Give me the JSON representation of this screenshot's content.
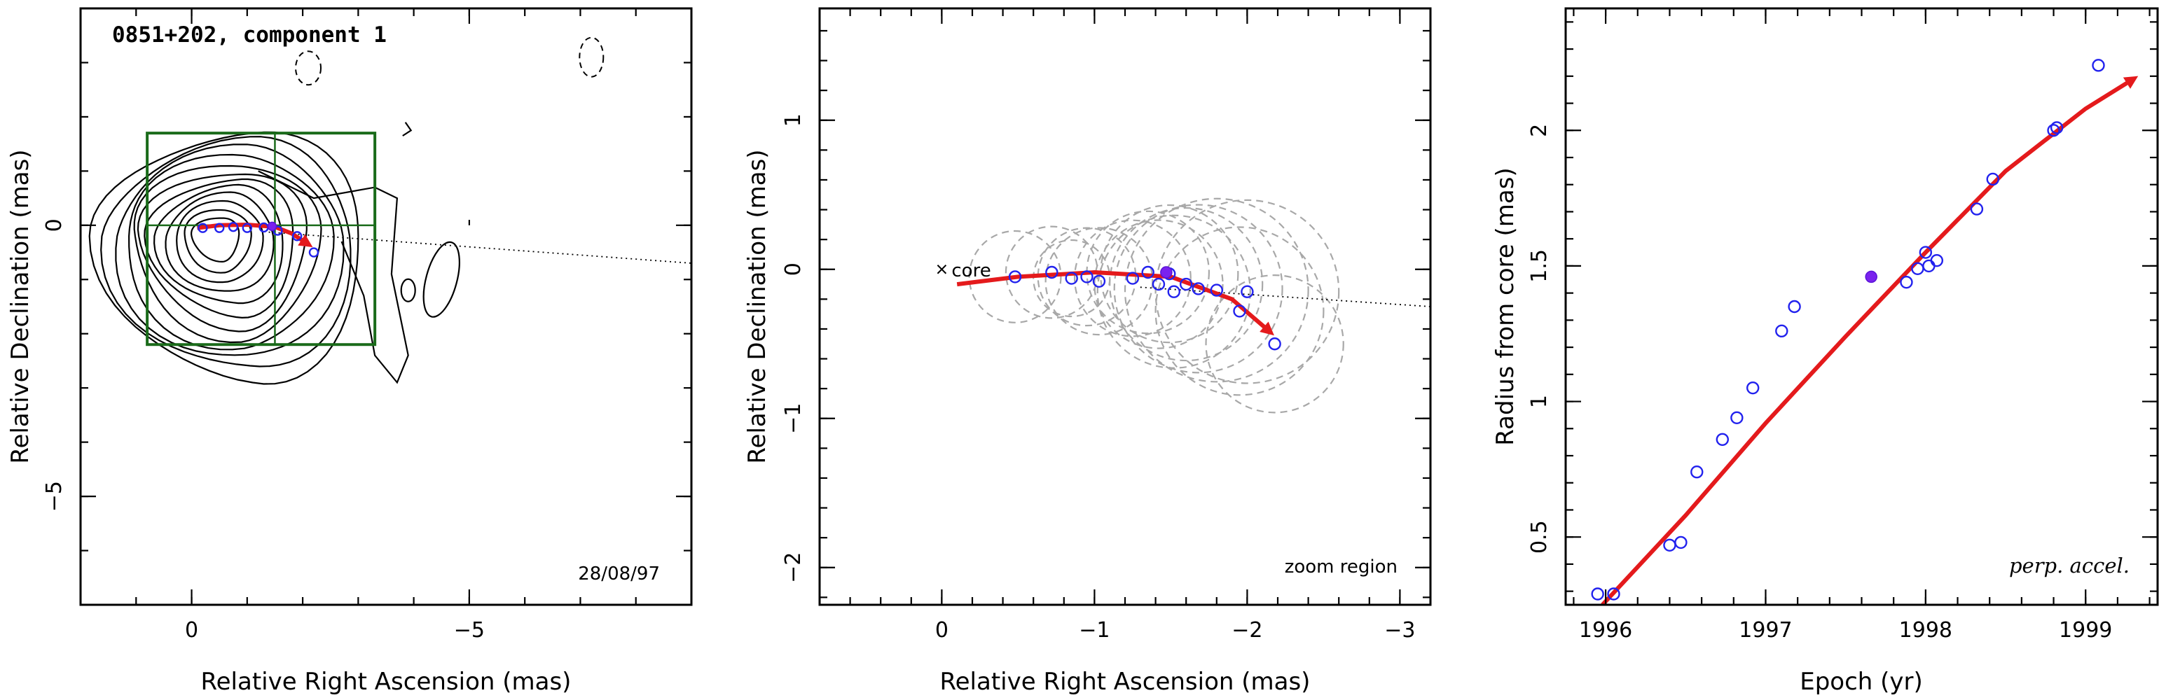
{
  "colors": {
    "trajectory": "#e41a1c",
    "points": "#2222ee",
    "filled_point": "#7a22ee",
    "ghost_circles": "#a8a8a8",
    "zoom_box": "#1a6b1a"
  },
  "chart_data": [
    {
      "type": "contour",
      "title": "0851+202, component 1",
      "annotation": "28/08/97",
      "xlabel": "Relative Right Ascension (mas)",
      "ylabel": "Relative Declination (mas)",
      "xlim": [
        2,
        -9
      ],
      "ylim": [
        -7,
        4
      ],
      "xticks": [
        0,
        -5
      ],
      "yticks": [
        0,
        -5
      ],
      "zoom_box": {
        "x": [
          0.8,
          -3.3
        ],
        "y": [
          1.7,
          -2.2
        ],
        "cross_x": -1.5,
        "cross_y": 0
      },
      "trajectory": [
        [
          -0.1,
          -0.05
        ],
        [
          -0.5,
          0.0
        ],
        [
          -1.0,
          0.01
        ],
        [
          -1.5,
          -0.03
        ],
        [
          -1.8,
          -0.15
        ],
        [
          -2.1,
          -0.35
        ]
      ],
      "points": [
        [
          -0.2,
          -0.05
        ],
        [
          -0.5,
          -0.05
        ],
        [
          -0.75,
          -0.03
        ],
        [
          -1.0,
          -0.05
        ],
        [
          -1.3,
          -0.04
        ],
        [
          -1.55,
          -0.1
        ],
        [
          -1.9,
          -0.2
        ],
        [
          -2.2,
          -0.5
        ]
      ],
      "filled_point": [
        -1.45,
        -0.02
      ],
      "jet_axis": [
        [
          -1.3,
          -0.12
        ],
        [
          -9,
          -0.7
        ]
      ]
    },
    {
      "type": "scatter",
      "annotation": "zoom region",
      "core_label": "core",
      "xlabel": "Relative Right Ascension (mas)",
      "ylabel": "Relative Declination (mas)",
      "xlim": [
        0.8,
        -3.2
      ],
      "ylim": [
        -2.25,
        1.75
      ],
      "xticks": [
        0,
        -1,
        -2,
        -3
      ],
      "yticks": [
        1,
        0,
        -1,
        -2
      ],
      "core": [
        0,
        0
      ],
      "trajectory": [
        [
          -0.1,
          -0.1
        ],
        [
          -0.5,
          -0.05
        ],
        [
          -1.0,
          -0.02
        ],
        [
          -1.5,
          -0.05
        ],
        [
          -1.9,
          -0.2
        ],
        [
          -2.15,
          -0.42
        ]
      ],
      "points": [
        {
          "x": -0.48,
          "y": -0.05,
          "r": 0.3
        },
        {
          "x": -0.72,
          "y": -0.02,
          "r": 0.3
        },
        {
          "x": -0.85,
          "y": -0.06,
          "r": 0.25
        },
        {
          "x": -0.95,
          "y": -0.05,
          "r": 0.32
        },
        {
          "x": -1.03,
          "y": -0.08,
          "r": 0.35
        },
        {
          "x": -1.25,
          "y": -0.06,
          "r": 0.38
        },
        {
          "x": -1.35,
          "y": -0.02,
          "r": 0.4
        },
        {
          "x": -1.42,
          "y": -0.1,
          "r": 0.42
        },
        {
          "x": -1.49,
          "y": -0.03,
          "r": 0.45
        },
        {
          "x": -1.52,
          "y": -0.15,
          "r": 0.5
        },
        {
          "x": -1.6,
          "y": -0.1,
          "r": 0.5
        },
        {
          "x": -1.68,
          "y": -0.13,
          "r": 0.55
        },
        {
          "x": -1.8,
          "y": -0.14,
          "r": 0.6
        },
        {
          "x": -1.95,
          "y": -0.28,
          "r": 0.55
        },
        {
          "x": -2.0,
          "y": -0.15,
          "r": 0.6
        },
        {
          "x": -2.18,
          "y": -0.5,
          "r": 0.45
        }
      ],
      "filled_point": {
        "x": -1.47,
        "y": -0.02
      },
      "jet_axis": [
        [
          -1.3,
          -0.12
        ],
        [
          -3.2,
          -0.25
        ]
      ]
    },
    {
      "type": "scatter",
      "annotation": "perp. accel.",
      "xlabel": "Epoch (yr)",
      "ylabel": "Radius from core (mas)",
      "xlim": [
        1995.75,
        1999.45
      ],
      "ylim": [
        0.25,
        2.45
      ],
      "xticks": [
        1996,
        1997,
        1998,
        1999
      ],
      "yticks": [
        0.5,
        1,
        1.5,
        2
      ],
      "ytick_labels": [
        "0.5",
        "1",
        "1.5",
        "2"
      ],
      "fit_curve": [
        [
          1995.98,
          0.25
        ],
        [
          1996.5,
          0.58
        ],
        [
          1997.0,
          0.92
        ],
        [
          1997.5,
          1.24
        ],
        [
          1998.0,
          1.55
        ],
        [
          1998.5,
          1.85
        ],
        [
          1999.0,
          2.08
        ],
        [
          1999.3,
          2.19
        ]
      ],
      "points": [
        {
          "x": 1995.95,
          "y": 0.29
        },
        {
          "x": 1996.05,
          "y": 0.29
        },
        {
          "x": 1996.4,
          "y": 0.47
        },
        {
          "x": 1996.47,
          "y": 0.48
        },
        {
          "x": 1996.57,
          "y": 0.74
        },
        {
          "x": 1996.73,
          "y": 0.86
        },
        {
          "x": 1996.82,
          "y": 0.94
        },
        {
          "x": 1996.92,
          "y": 1.05
        },
        {
          "x": 1997.1,
          "y": 1.26
        },
        {
          "x": 1997.18,
          "y": 1.35
        },
        {
          "x": 1997.88,
          "y": 1.44
        },
        {
          "x": 1997.95,
          "y": 1.49
        },
        {
          "x": 1998.0,
          "y": 1.55
        },
        {
          "x": 1998.02,
          "y": 1.5
        },
        {
          "x": 1998.07,
          "y": 1.52
        },
        {
          "x": 1998.32,
          "y": 1.71
        },
        {
          "x": 1998.42,
          "y": 1.82
        },
        {
          "x": 1998.8,
          "y": 2.0
        },
        {
          "x": 1998.82,
          "y": 2.01
        },
        {
          "x": 1999.08,
          "y": 2.24
        }
      ],
      "filled_point": {
        "x": 1997.66,
        "y": 1.46
      }
    }
  ]
}
